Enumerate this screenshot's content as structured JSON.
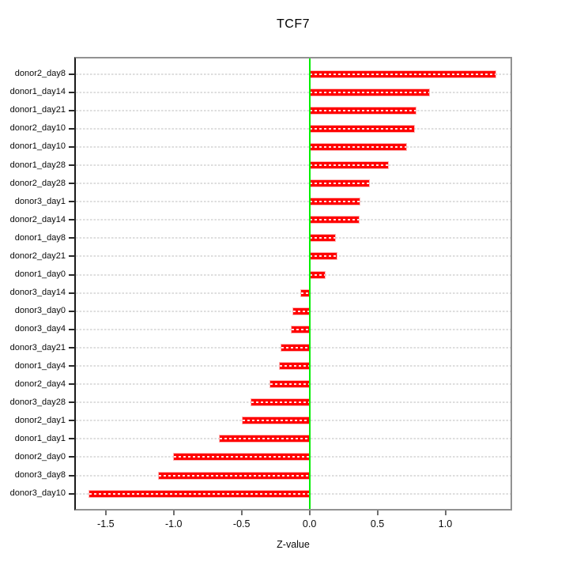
{
  "chart_data": {
    "type": "bar",
    "orientation": "horizontal",
    "title": "TCF7",
    "xlabel": "Z-value",
    "categories": [
      "donor2_day8",
      "donor1_day14",
      "donor1_day21",
      "donor2_day10",
      "donor1_day10",
      "donor1_day28",
      "donor2_day28",
      "donor3_day1",
      "donor2_day14",
      "donor1_day8",
      "donor2_day21",
      "donor1_day0",
      "donor3_day14",
      "donor3_day0",
      "donor3_day4",
      "donor3_day21",
      "donor1_day4",
      "donor2_day4",
      "donor3_day28",
      "donor2_day1",
      "donor1_day1",
      "donor2_day0",
      "donor3_day8",
      "donor3_day10"
    ],
    "values": [
      1.37,
      0.88,
      0.78,
      0.77,
      0.71,
      0.58,
      0.44,
      0.37,
      0.36,
      0.19,
      0.2,
      0.11,
      -0.06,
      -0.12,
      -0.13,
      -0.21,
      -0.22,
      -0.29,
      -0.43,
      -0.49,
      -0.66,
      -1.0,
      -1.11,
      -1.62
    ],
    "xlim": [
      -1.72,
      1.48
    ],
    "x_ticks": [
      -1.5,
      -1.0,
      -0.5,
      0.0,
      0.5,
      1.0
    ],
    "x_tick_labels": [
      "-1.5",
      "-1.0",
      "-0.5",
      "0.0",
      "0.5",
      "1.0"
    ],
    "grid": "horizontal-dashed",
    "legend": "none",
    "bar_color": "#ff0000",
    "zero_line_color": "#00ee00",
    "grid_color": "#dedede",
    "box_color": "#929292"
  }
}
